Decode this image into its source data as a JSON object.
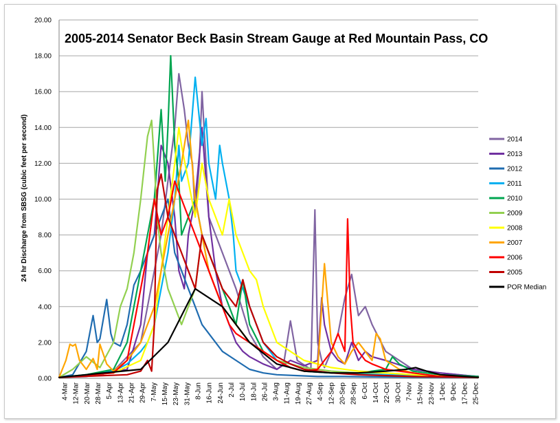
{
  "chart_data": {
    "type": "line",
    "title": "2005-2014 Senator Beck Basin Stream Gauge at Red Mountain Pass, CO",
    "ylabel": "24 hr Discharge from SBSG (cubic feet per second)",
    "xlabel": "",
    "ylim": [
      0,
      20
    ],
    "yticks": [
      "0.00",
      "2.00",
      "4.00",
      "6.00",
      "8.00",
      "10.00",
      "12.00",
      "14.00",
      "16.00",
      "18.00",
      "20.00"
    ],
    "xtick_labels": [
      "4-Mar",
      "12-Mar",
      "20-Mar",
      "28-Mar",
      "5-Apr",
      "13-Apr",
      "21-Apr",
      "29-Apr",
      "7-May",
      "15-May",
      "23-May",
      "31-May",
      "8-Jun",
      "16-Jun",
      "24-Jun",
      "2-Jul",
      "10-Jul",
      "18-Jul",
      "26-Jul",
      "3-Aug",
      "11-Aug",
      "19-Aug",
      "27-Aug",
      "4-Sep",
      "12-Sep",
      "20-Sep",
      "28-Sep",
      "6-Oct",
      "14-Oct",
      "22-Oct",
      "30-Oct",
      "7-Nov",
      "15-Nov",
      "23-Nov",
      "1-Dec",
      "9-Dec",
      "17-Dec",
      "25-Dec"
    ],
    "x_day_range": [
      0,
      308
    ],
    "grid": "horizontal",
    "legend_position": "right",
    "series": [
      {
        "name": "2014",
        "color": "#8064a2",
        "x": [
          0,
          20,
          40,
          60,
          65,
          70,
          75,
          80,
          85,
          88,
          90,
          92,
          95,
          98,
          100,
          103,
          105,
          108,
          110,
          115,
          120,
          130,
          140,
          150,
          160,
          165,
          170,
          175,
          185,
          188,
          190,
          193,
          195,
          200,
          205,
          210,
          215,
          220,
          225,
          230,
          240,
          260,
          280,
          300,
          308
        ],
        "values": [
          0.05,
          0.1,
          0.4,
          2,
          4,
          6,
          8,
          11,
          14,
          17,
          16,
          15,
          13,
          12,
          9,
          12,
          16,
          12,
          9,
          8,
          7,
          5,
          2.5,
          1.2,
          0.5,
          0.8,
          3.2,
          1,
          0.5,
          9.4,
          2,
          1,
          0.6,
          1.5,
          2.5,
          4.5,
          5.8,
          3.5,
          4,
          3,
          1.5,
          0.5,
          0.3,
          0.15,
          0.1
        ]
      },
      {
        "name": "2013",
        "color": "#7030a0",
        "x": [
          0,
          30,
          50,
          60,
          65,
          70,
          75,
          80,
          85,
          88,
          92,
          95,
          100,
          105,
          110,
          115,
          120,
          125,
          130,
          135,
          140,
          150,
          160,
          170,
          180,
          190,
          193,
          195,
          200,
          205,
          210,
          215,
          220,
          225,
          230,
          240,
          260,
          280,
          300,
          308
        ],
        "values": [
          0.05,
          0.2,
          0.5,
          3,
          7,
          8,
          13,
          12,
          9,
          6,
          5,
          8,
          10,
          14,
          9,
          6,
          4,
          3,
          2,
          1.5,
          1.2,
          0.8,
          0.5,
          1,
          0.7,
          1,
          4.5,
          3,
          1.5,
          1,
          0.8,
          2,
          1,
          1.5,
          1.2,
          1,
          0.5,
          0.3,
          0.15,
          0.1
        ]
      },
      {
        "name": "2012",
        "color": "#1f6cb0",
        "x": [
          0,
          10,
          20,
          25,
          28,
          30,
          35,
          38,
          40,
          45,
          50,
          55,
          60,
          65,
          70,
          75,
          80,
          85,
          90,
          95,
          100,
          105,
          110,
          115,
          120,
          130,
          140,
          150,
          160,
          175,
          190,
          210,
          230,
          260,
          308
        ],
        "values": [
          0.05,
          0.2,
          1.5,
          3.5,
          2,
          2.2,
          4.4,
          2.5,
          2,
          1.8,
          3,
          5.2,
          6,
          7,
          8,
          9,
          10,
          7,
          6,
          5,
          4,
          3,
          2.5,
          2,
          1.5,
          1,
          0.5,
          0.3,
          0.2,
          0.15,
          0.1,
          0.1,
          0.08,
          0.06,
          0.05
        ]
      },
      {
        "name": "2011",
        "color": "#00b0f0",
        "x": [
          0,
          20,
          40,
          50,
          60,
          65,
          70,
          75,
          80,
          85,
          88,
          90,
          95,
          100,
          105,
          108,
          110,
          115,
          118,
          120,
          125,
          128,
          130,
          135,
          140,
          145,
          150,
          155,
          160,
          170,
          180,
          200,
          220,
          240,
          260,
          280,
          308
        ],
        "values": [
          0.05,
          0.2,
          0.4,
          0.8,
          1.5,
          2,
          3,
          5,
          7,
          10,
          13,
          11,
          12,
          16.8,
          13,
          14.5,
          12,
          10,
          13,
          12,
          10,
          8,
          6,
          5,
          4,
          3,
          2,
          1.5,
          1,
          0.6,
          0.4,
          0.3,
          0.25,
          0.2,
          0.15,
          0.1,
          0.05
        ]
      },
      {
        "name": "2010",
        "color": "#00a550",
        "x": [
          0,
          20,
          40,
          50,
          55,
          60,
          65,
          70,
          75,
          78,
          80,
          82,
          85,
          88,
          90,
          95,
          100,
          105,
          110,
          115,
          120,
          125,
          130,
          135,
          140,
          150,
          160,
          170,
          180,
          200,
          220,
          240,
          245,
          250,
          260,
          280,
          308
        ],
        "values": [
          0.05,
          0.2,
          0.5,
          2,
          4,
          6,
          8,
          10,
          15,
          11,
          14,
          18,
          13,
          11,
          8,
          9,
          10,
          8,
          7,
          6,
          5,
          4,
          3,
          5.5,
          3,
          1.5,
          1,
          0.6,
          0.4,
          0.3,
          0.3,
          0.5,
          1.2,
          0.8,
          0.4,
          0.2,
          0.1
        ]
      },
      {
        "name": "2009",
        "color": "#92d050",
        "x": [
          0,
          10,
          20,
          30,
          40,
          45,
          50,
          55,
          60,
          65,
          68,
          70,
          72,
          75,
          80,
          85,
          90,
          95,
          100,
          105,
          110,
          115,
          120,
          130,
          140,
          150,
          160,
          180,
          200,
          220,
          240,
          260,
          280,
          308
        ],
        "values": [
          0.05,
          0.5,
          1.2,
          0.6,
          2,
          4,
          5,
          7,
          10,
          13.5,
          14.4,
          12,
          9,
          7,
          5,
          4,
          3,
          4,
          5,
          8,
          6,
          5,
          4,
          3,
          2,
          1.5,
          1,
          0.6,
          0.4,
          0.3,
          0.3,
          0.2,
          0.1,
          0.05
        ]
      },
      {
        "name": "2008",
        "color": "#ffff00",
        "x": [
          0,
          40,
          60,
          70,
          75,
          80,
          85,
          88,
          90,
          95,
          100,
          105,
          110,
          115,
          120,
          125,
          130,
          135,
          140,
          145,
          150,
          155,
          160,
          170,
          180,
          200,
          220,
          240,
          260,
          308
        ],
        "values": [
          0.05,
          0.3,
          1,
          3,
          6,
          9,
          12,
          14,
          13,
          11,
          9,
          12,
          10,
          9,
          8,
          10,
          8,
          7,
          6,
          5.5,
          4,
          3,
          2,
          1.5,
          1,
          0.6,
          0.4,
          0.3,
          0.2,
          0.05
        ]
      },
      {
        "name": "2007",
        "color": "#ffa500",
        "x": [
          0,
          5,
          8,
          10,
          12,
          15,
          20,
          25,
          28,
          30,
          35,
          40,
          50,
          60,
          70,
          75,
          80,
          85,
          90,
          95,
          100,
          105,
          110,
          120,
          130,
          140,
          150,
          160,
          170,
          180,
          190,
          195,
          200,
          205,
          210,
          215,
          220,
          225,
          230,
          233,
          236,
          240,
          250,
          260,
          280,
          308
        ],
        "values": [
          0.05,
          1,
          1.9,
          1.8,
          1.9,
          1,
          0.5,
          1.1,
          0.5,
          1.9,
          0.8,
          0.4,
          1,
          2,
          4,
          6,
          8,
          10,
          12,
          14.4,
          10,
          8,
          6,
          4,
          3,
          2,
          1.5,
          1,
          0.6,
          0.4,
          0.5,
          6.4,
          2,
          1.2,
          0.8,
          1.5,
          2,
          1.5,
          1,
          2.5,
          2.2,
          1,
          0.5,
          0.3,
          0.1,
          0.05
        ]
      },
      {
        "name": "2006",
        "color": "#ff0000",
        "x": [
          0,
          40,
          50,
          55,
          60,
          65,
          70,
          75,
          80,
          85,
          90,
          95,
          100,
          105,
          110,
          115,
          120,
          125,
          130,
          140,
          150,
          160,
          170,
          180,
          190,
          200,
          205,
          210,
          212,
          214,
          216,
          220,
          225,
          230,
          240,
          260,
          280,
          308
        ],
        "values": [
          0.05,
          0.3,
          1,
          3,
          5,
          7,
          10,
          8,
          9,
          11,
          10,
          9,
          8,
          7,
          6,
          5,
          4,
          3,
          2.5,
          2,
          1.5,
          1,
          0.6,
          0.4,
          0.5,
          1.5,
          2.5,
          1.5,
          8.9,
          4,
          2,
          1.5,
          1,
          0.8,
          0.5,
          0.3,
          0.1,
          0.05
        ]
      },
      {
        "name": "2005",
        "color": "#c00000",
        "x": [
          0,
          50,
          60,
          65,
          68,
          70,
          72,
          75,
          80,
          85,
          90,
          95,
          100,
          105,
          110,
          115,
          120,
          125,
          130,
          135,
          140,
          150,
          160,
          170,
          180,
          200,
          220,
          240,
          260,
          308
        ],
        "values": [
          0.05,
          0.2,
          0.4,
          1,
          0.4,
          3,
          10.5,
          11.4,
          9,
          8,
          7,
          6,
          5,
          8,
          7,
          6,
          5,
          4.5,
          4,
          5.5,
          4,
          2,
          1.2,
          0.8,
          0.5,
          0.3,
          0.2,
          0.15,
          0.1,
          0.05
        ]
      },
      {
        "name": "POR Median",
        "color": "#000000",
        "x": [
          0,
          60,
          80,
          100,
          120,
          140,
          160,
          180,
          200,
          220,
          240,
          255,
          262,
          270,
          280,
          308
        ],
        "values": [
          0.05,
          0.5,
          2,
          5,
          4,
          2,
          0.8,
          0.4,
          0.3,
          0.3,
          0.4,
          0.5,
          0.6,
          0.4,
          0.2,
          0.05
        ]
      }
    ]
  }
}
